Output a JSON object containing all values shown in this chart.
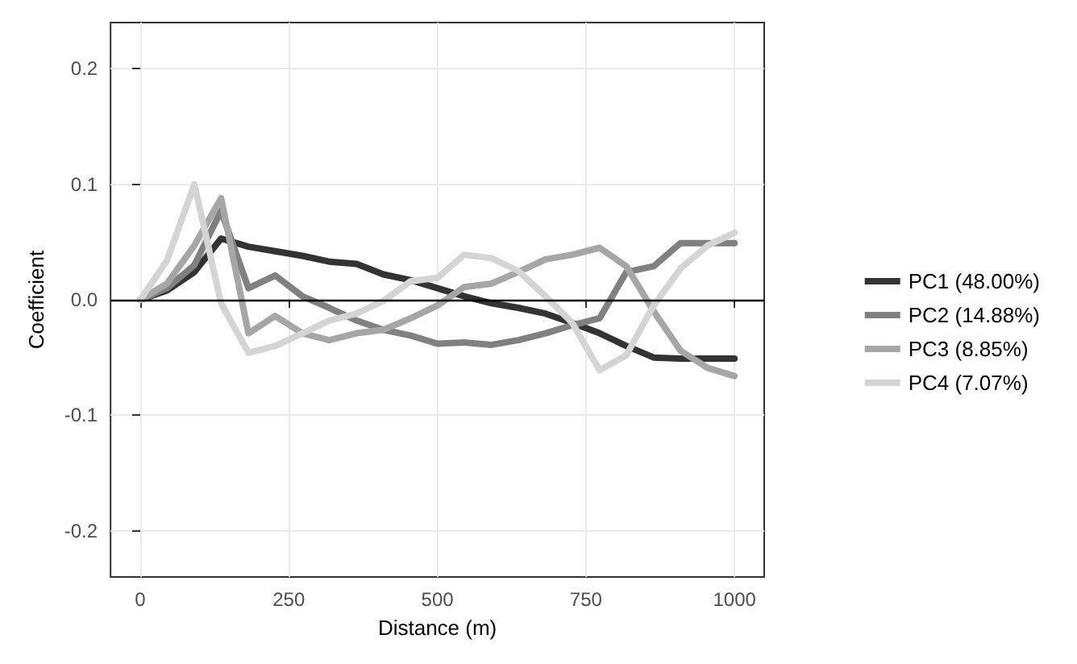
{
  "chart_data": {
    "type": "line",
    "xlabel": "Distance (m)",
    "ylabel": "Coefficient",
    "x": [
      0,
      45,
      91,
      136,
      182,
      227,
      273,
      318,
      364,
      409,
      455,
      500,
      545,
      591,
      636,
      682,
      727,
      773,
      818,
      864,
      909,
      955,
      1000
    ],
    "series": [
      {
        "name": "PC1 (48.00%)",
        "color": "#333333",
        "values": [
          0,
          0.008,
          0.024,
          0.053,
          0.046,
          0.042,
          0.038,
          0.033,
          0.031,
          0.022,
          0.017,
          0.01,
          0.003,
          -0.003,
          -0.007,
          -0.012,
          -0.02,
          -0.029,
          -0.04,
          -0.05,
          -0.051,
          -0.051,
          -0.051
        ]
      },
      {
        "name": "PC2 (14.88%)",
        "color": "#808080",
        "values": [
          0,
          0.01,
          0.03,
          0.077,
          0.01,
          0.021,
          0.003,
          -0.007,
          -0.018,
          -0.026,
          -0.031,
          -0.038,
          -0.037,
          -0.039,
          -0.035,
          -0.029,
          -0.022,
          -0.016,
          0.024,
          0.029,
          0.049,
          0.049,
          0.049
        ]
      },
      {
        "name": "PC3 (8.85%)",
        "color": "#a6a6a6",
        "values": [
          0,
          0.014,
          0.047,
          0.088,
          -0.029,
          -0.014,
          -0.029,
          -0.035,
          -0.029,
          -0.026,
          -0.016,
          -0.005,
          0.011,
          0.014,
          0.024,
          0.035,
          0.039,
          0.045,
          0.029,
          -0.01,
          -0.044,
          -0.059,
          -0.066
        ]
      },
      {
        "name": "PC4 (7.07%)",
        "color": "#d4d4d4",
        "values": [
          0,
          0.034,
          0.1,
          -0.003,
          -0.046,
          -0.04,
          -0.029,
          -0.018,
          -0.012,
          -0.001,
          0.016,
          0.019,
          0.039,
          0.036,
          0.025,
          0.003,
          -0.02,
          -0.061,
          -0.048,
          -0.005,
          0.027,
          0.047,
          0.058
        ]
      }
    ],
    "xlim": [
      -50,
      1050
    ],
    "xticks": [
      0,
      250,
      500,
      750,
      1000
    ],
    "ylim": [
      -0.24,
      0.24
    ],
    "yticks": [
      -0.2,
      -0.1,
      {
        "value": 0,
        "label": "0.0"
      },
      0.1,
      0.2
    ],
    "ref_lines": [
      {
        "axis": "y",
        "value": 0,
        "color": "#000000"
      }
    ],
    "grid": true,
    "legend": "right",
    "marker": "none",
    "line_style": "solid"
  }
}
